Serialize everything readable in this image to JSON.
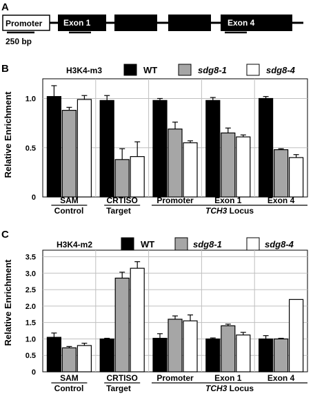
{
  "colors": {
    "wt": "#000000",
    "sdg8_1": "#a6a6a6",
    "sdg8_4": "#ffffff",
    "grid": "#bfbfbf"
  },
  "panel_a": {
    "letter": "A",
    "promoter_label": "Promoter",
    "exon1_label": "Exon 1",
    "exon4_label": "Exon 4",
    "scale_label": "250 bp"
  },
  "legend": {
    "wt": "WT",
    "sdg8_1": "sdg8-1",
    "sdg8_4": "sdg8-4"
  },
  "groups": {
    "control": "Control",
    "target": "Target",
    "locus_gene": "TCH3",
    "locus_word": " Locus"
  },
  "chart_data": [
    {
      "panel": "B",
      "type": "bar",
      "title": "H3K4-m3",
      "ylabel": "Relative Enrichment",
      "ylim": [
        0,
        1.2
      ],
      "yticks": [
        "0",
        "0.5",
        "1.0"
      ],
      "ytick_values": [
        0,
        0.5,
        1.0
      ],
      "categories": [
        "SAM",
        "CRTISO",
        "Promoter",
        "Exon 1",
        "Exon 4"
      ],
      "series": [
        {
          "name": "WT",
          "values": [
            1.02,
            0.98,
            0.98,
            0.98,
            1.0
          ],
          "errors": [
            0.11,
            0.05,
            0.02,
            0.03,
            0.02
          ]
        },
        {
          "name": "sdg8-1",
          "values": [
            0.88,
            0.38,
            0.69,
            0.65,
            0.48
          ],
          "errors": [
            0.03,
            0.11,
            0.07,
            0.05,
            0.01
          ]
        },
        {
          "name": "sdg8-4",
          "values": [
            0.99,
            0.41,
            0.55,
            0.61,
            0.4
          ],
          "errors": [
            0.04,
            0.15,
            0.02,
            0.02,
            0.03
          ]
        }
      ]
    },
    {
      "panel": "C",
      "type": "bar",
      "title": "H3K4-m2",
      "ylabel": "Relative Enrichment",
      "ylim": [
        0,
        3.7
      ],
      "yticks": [
        "0",
        "0.5",
        "1.0",
        "1.5",
        "2.0",
        "2.5",
        "3.0",
        "3.5"
      ],
      "ytick_values": [
        0,
        0.5,
        1.0,
        1.5,
        2.0,
        2.5,
        3.0,
        3.5
      ],
      "categories": [
        "SAM",
        "CRTISO",
        "Promoter",
        "Exon 1",
        "Exon 4"
      ],
      "series": [
        {
          "name": "WT",
          "values": [
            1.05,
            1.0,
            1.02,
            1.0,
            1.0
          ],
          "errors": [
            0.13,
            0.02,
            0.14,
            0.03,
            0.1
          ]
        },
        {
          "name": "sdg8-1",
          "values": [
            0.73,
            2.85,
            1.6,
            1.4,
            1.0
          ],
          "errors": [
            0.04,
            0.18,
            0.1,
            0.05,
            0.02
          ]
        },
        {
          "name": "sdg8-4",
          "values": [
            0.8,
            3.15,
            1.55,
            1.12,
            2.2
          ],
          "errors": [
            0.07,
            0.2,
            0.18,
            0.08,
            0.0
          ]
        }
      ]
    }
  ]
}
